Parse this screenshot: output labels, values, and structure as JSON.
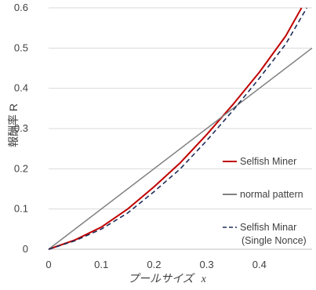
{
  "chart_data": {
    "type": "line",
    "title": "",
    "xlabel": "プールサイズ",
    "xlabel_var": "x",
    "ylabel": "報酬率 R",
    "xlim": [
      0,
      0.5
    ],
    "ylim": [
      0,
      0.6
    ],
    "x_ticks": [
      0,
      0.1,
      0.2,
      0.3,
      0.4
    ],
    "x_tick_labels": [
      "0",
      "0.1",
      "0.2",
      "0.3",
      "0.4"
    ],
    "y_ticks": [
      0,
      0.1,
      0.2,
      0.3,
      0.4,
      0.5,
      0.6
    ],
    "y_tick_labels": [
      "0",
      "0.1",
      "0.2",
      "0.3",
      "0.4",
      "0.5",
      "0.6"
    ],
    "grid": "horizontal",
    "legend_position": "right",
    "series": [
      {
        "name": "Selfish Miner",
        "color": "#c00000",
        "style": "solid",
        "x": [
          0,
          0.05,
          0.1,
          0.15,
          0.2,
          0.25,
          0.3,
          0.35,
          0.4,
          0.45,
          0.48
        ],
        "y": [
          0,
          0.023,
          0.055,
          0.1,
          0.155,
          0.215,
          0.285,
          0.36,
          0.44,
          0.53,
          0.6
        ]
      },
      {
        "name": "normal pattern",
        "color": "#808080",
        "style": "solid",
        "x": [
          0,
          0.5
        ],
        "y": [
          0,
          0.5
        ]
      },
      {
        "name": "Selfish Minar\n(Single Nonce)",
        "legend_lines": [
          "Selfish Minar",
          "(Single Nonce)"
        ],
        "color": "#1f2d5a",
        "style": "dashed",
        "x": [
          0,
          0.05,
          0.1,
          0.15,
          0.2,
          0.25,
          0.3,
          0.35,
          0.4,
          0.45,
          0.49
        ],
        "y": [
          0,
          0.021,
          0.05,
          0.09,
          0.143,
          0.2,
          0.27,
          0.345,
          0.425,
          0.51,
          0.6
        ]
      }
    ]
  }
}
